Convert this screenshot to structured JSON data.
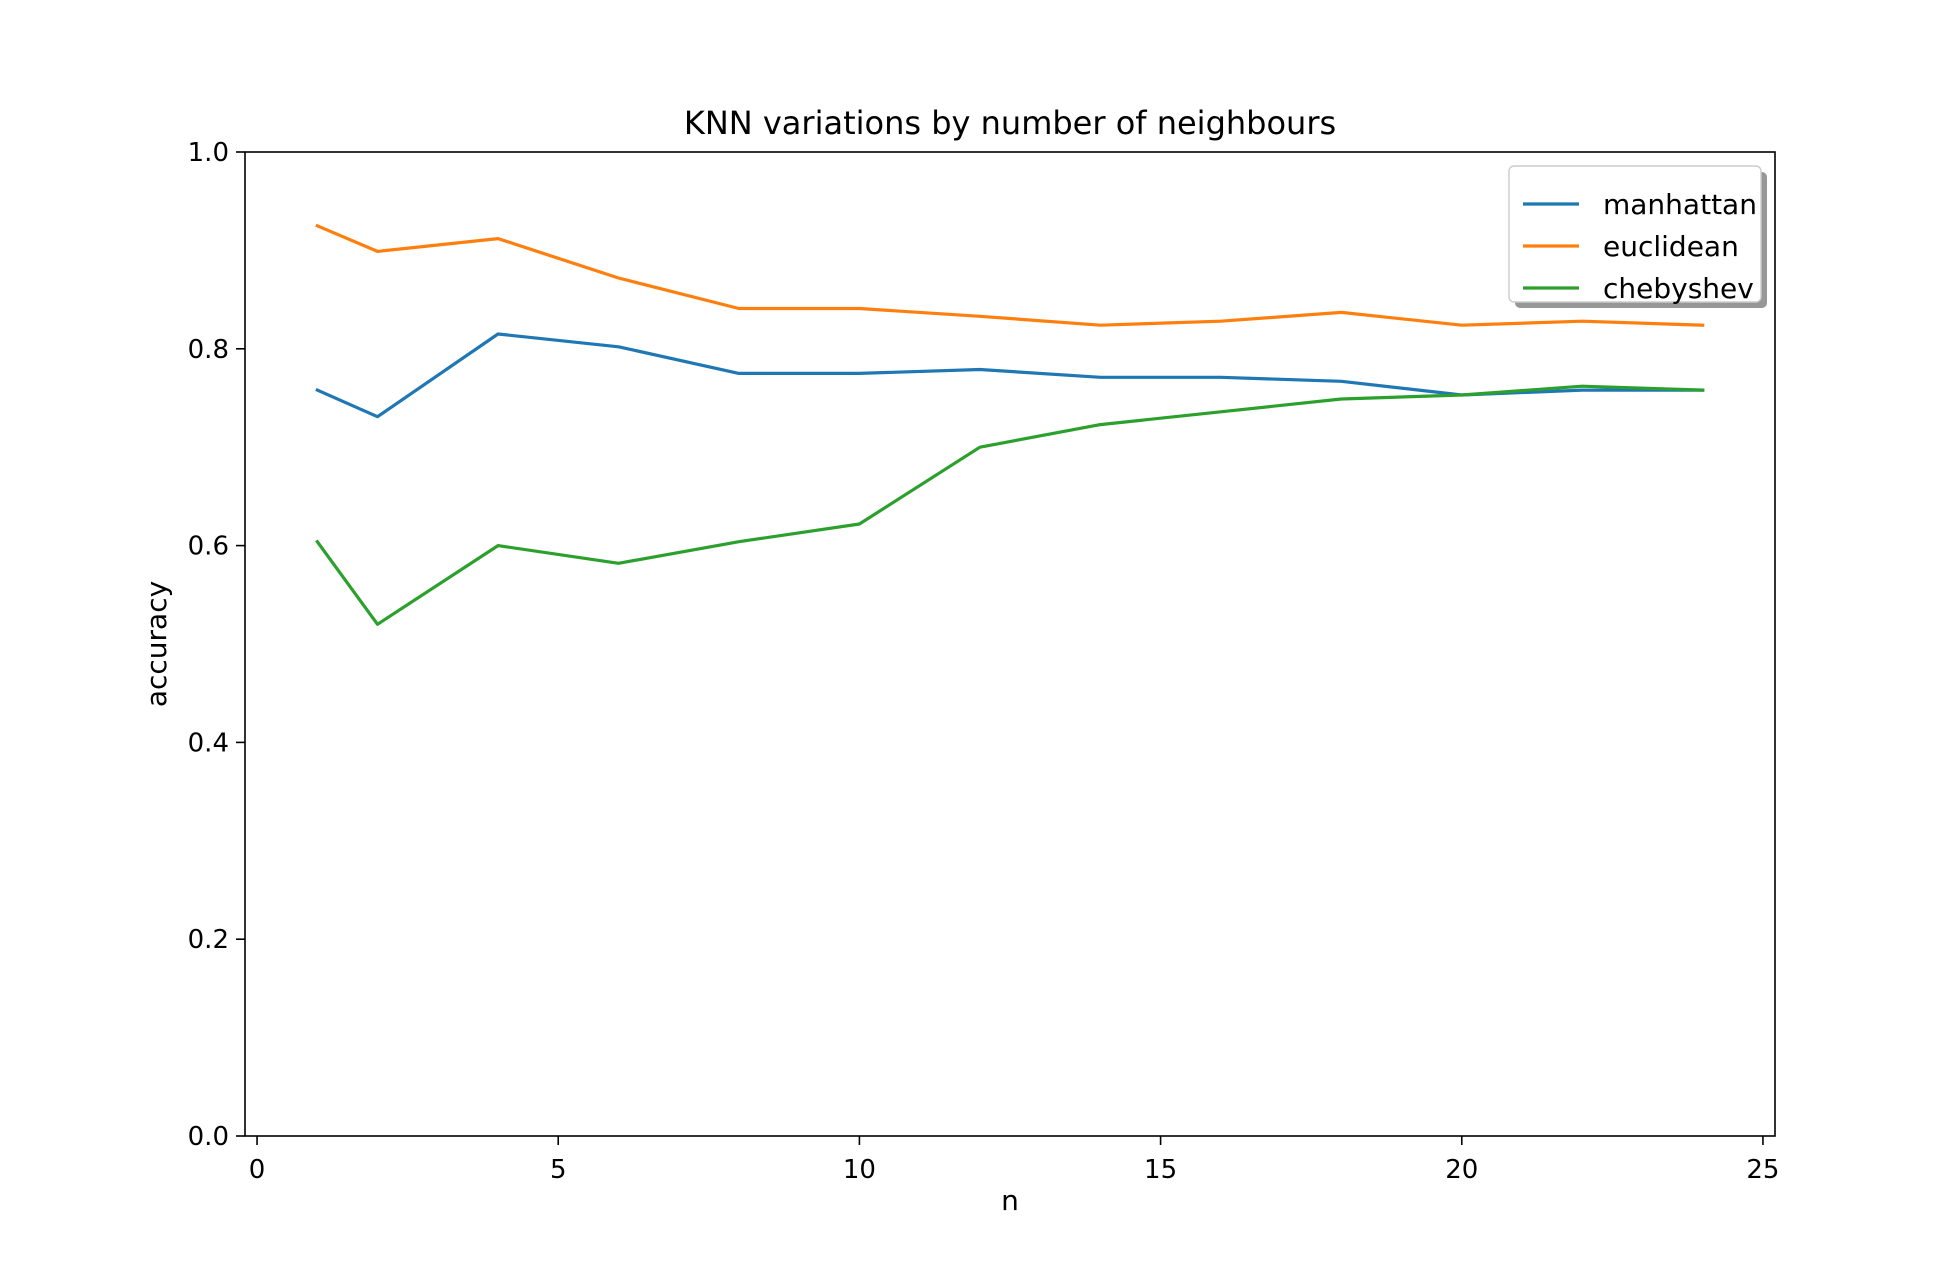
{
  "chart_data": {
    "type": "line",
    "title": "KNN variations by number of neighbours",
    "xlabel": "n",
    "ylabel": "accuracy",
    "xlim": [
      -0.2,
      25.2
    ],
    "ylim": [
      0.0,
      1.0
    ],
    "xticks": [
      0,
      5,
      10,
      15,
      20,
      25
    ],
    "yticks": [
      0.0,
      0.2,
      0.4,
      0.6,
      0.8,
      1.0
    ],
    "xtick_labels": [
      "0",
      "5",
      "10",
      "15",
      "20",
      "25"
    ],
    "ytick_labels": [
      "0.0",
      "0.2",
      "0.4",
      "0.6",
      "0.8",
      "1.0"
    ],
    "grid": false,
    "legend_position": "top-right",
    "x": [
      1,
      2,
      4,
      6,
      8,
      10,
      12,
      14,
      16,
      18,
      20,
      22,
      24
    ],
    "series": [
      {
        "name": "manhattan",
        "color": "#1f77b4",
        "values": [
          0.758,
          0.731,
          0.815,
          0.802,
          0.775,
          0.775,
          0.779,
          0.771,
          0.771,
          0.767,
          0.753,
          0.758,
          0.758
        ]
      },
      {
        "name": "euclidean",
        "color": "#ff7f0e",
        "values": [
          0.925,
          0.899,
          0.912,
          0.872,
          0.841,
          0.841,
          0.833,
          0.824,
          0.828,
          0.837,
          0.824,
          0.828,
          0.824
        ]
      },
      {
        "name": "chebyshev",
        "color": "#2ca02c",
        "values": [
          0.604,
          0.52,
          0.6,
          0.582,
          0.604,
          0.622,
          0.7,
          0.723,
          0.736,
          0.749,
          0.753,
          0.762,
          0.758
        ]
      }
    ]
  }
}
